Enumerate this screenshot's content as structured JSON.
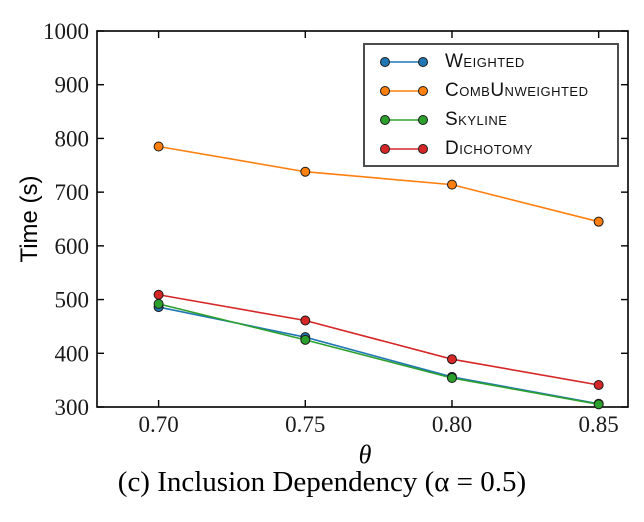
{
  "chart_data": {
    "type": "line",
    "x": [
      0.7,
      0.75,
      0.8,
      0.85
    ],
    "xtick_labels": [
      "0.70",
      "0.75",
      "0.80",
      "0.85"
    ],
    "ytick_values": [
      300,
      400,
      500,
      600,
      700,
      800,
      900,
      1000
    ],
    "xlim": [
      0.679,
      0.86
    ],
    "ylim": [
      300,
      1000
    ],
    "xlabel": "θ",
    "ylabel": "Time (s)",
    "grid": false,
    "legend_position": "upper right",
    "series": [
      {
        "name": "Weighted",
        "color": "#1f77b4",
        "values": [
          486,
          430,
          356,
          306
        ]
      },
      {
        "name": "CombUnweighted",
        "color": "#ff7f0e",
        "values": [
          785,
          738,
          714,
          645
        ]
      },
      {
        "name": "Skyline",
        "color": "#2ca02c",
        "values": [
          492,
          425,
          354,
          305
        ]
      },
      {
        "name": "Dichotomy",
        "color": "#d62728",
        "values": [
          509,
          461,
          389,
          341
        ]
      }
    ],
    "marker_edge_color": "#1a1a1a",
    "axis_color": "#000000",
    "caption": "(c) Inclusion Dependency (α = 0.5)"
  },
  "legend": {
    "items": [
      {
        "label": "Weighted"
      },
      {
        "label": "CombUnweighted"
      },
      {
        "label": "Skyline"
      },
      {
        "label": "Dichotomy"
      }
    ]
  }
}
